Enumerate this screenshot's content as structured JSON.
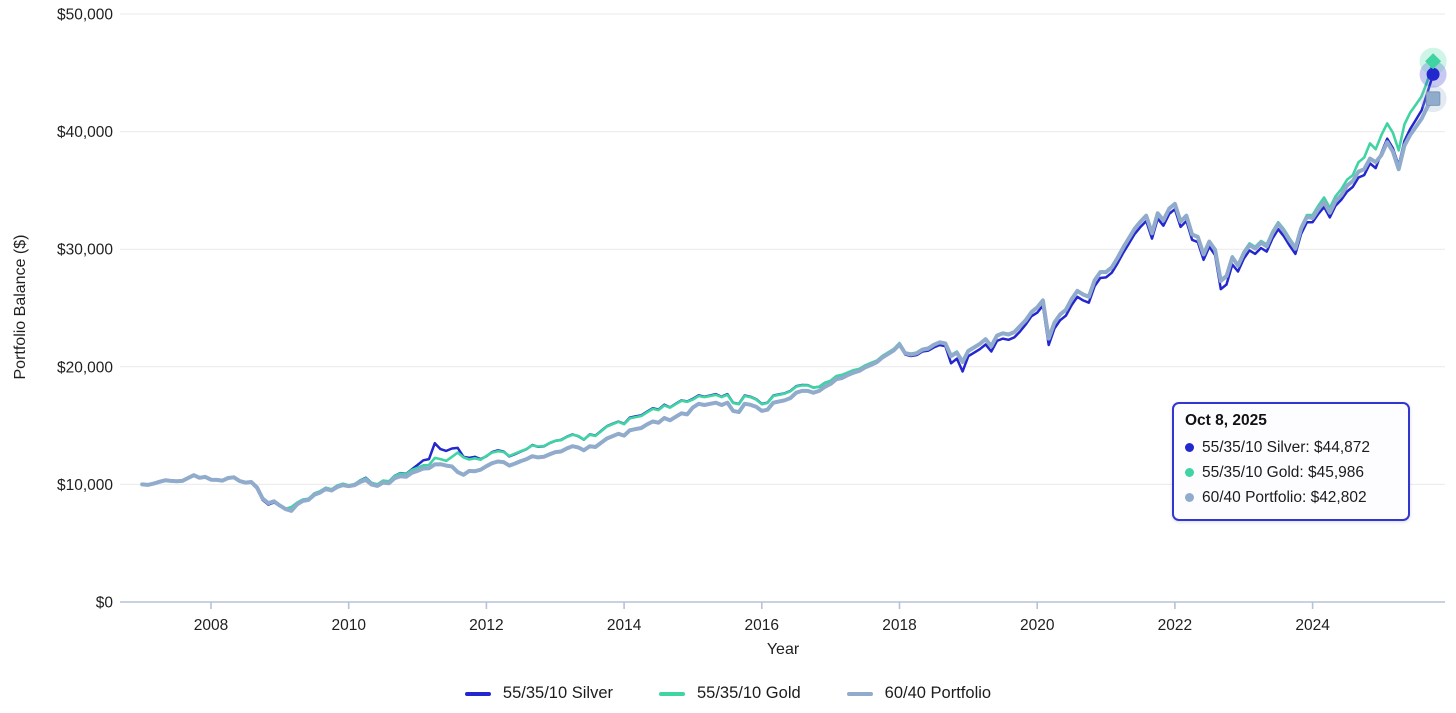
{
  "chart_data": {
    "type": "line",
    "title": "",
    "xlabel": "Year",
    "ylabel": "Portfolio Balance ($)",
    "x_start": {
      "year": 2007,
      "month": 1
    },
    "x_end": {
      "year": 2025,
      "month": 10
    },
    "points_per_year": 12,
    "ylim": [
      0,
      50000
    ],
    "grid": "horizontal",
    "legend_position": "bottom",
    "y_ticks": [
      {
        "value": 0,
        "label": "$0"
      },
      {
        "value": 10000,
        "label": "$10,000"
      },
      {
        "value": 20000,
        "label": "$20,000"
      },
      {
        "value": 30000,
        "label": "$30,000"
      },
      {
        "value": 40000,
        "label": "$40,000"
      },
      {
        "value": 50000,
        "label": "$50,000"
      }
    ],
    "x_ticks": [
      {
        "value": 2008,
        "label": "2008"
      },
      {
        "value": 2010,
        "label": "2010"
      },
      {
        "value": 2012,
        "label": "2012"
      },
      {
        "value": 2014,
        "label": "2014"
      },
      {
        "value": 2016,
        "label": "2016"
      },
      {
        "value": 2018,
        "label": "2018"
      },
      {
        "value": 2020,
        "label": "2020"
      },
      {
        "value": 2022,
        "label": "2022"
      },
      {
        "value": 2024,
        "label": "2024"
      }
    ],
    "series": [
      {
        "name": "55/35/10 Silver",
        "color": "#2427cd",
        "marker": "circle",
        "final_value": 44872,
        "values": [
          10000,
          9940,
          10050,
          10200,
          10380,
          10300,
          10230,
          10290,
          10570,
          10830,
          10570,
          10650,
          10360,
          10440,
          10280,
          10530,
          10650,
          10270,
          10100,
          10160,
          9650,
          8680,
          8280,
          8460,
          8180,
          7850,
          8020,
          8420,
          8700,
          8760,
          9220,
          9400,
          9710,
          9550,
          9890,
          10050,
          9900,
          10000,
          10340,
          10560,
          10130,
          9990,
          10300,
          10240,
          10740,
          10960,
          10900,
          11280,
          11650,
          12050,
          12150,
          13500,
          13000,
          12850,
          13050,
          13100,
          12350,
          12250,
          12350,
          12150,
          12400,
          12750,
          12900,
          12800,
          12380,
          12580,
          12800,
          13000,
          13350,
          13200,
          13230,
          13500,
          13700,
          13780,
          14050,
          14250,
          14100,
          13800,
          14250,
          14150,
          14550,
          14950,
          15150,
          15350,
          15150,
          15680,
          15780,
          15880,
          16180,
          16480,
          16360,
          16780,
          16550,
          16850,
          17150,
          17050,
          17280,
          17580,
          17460,
          17560,
          17680,
          17460,
          17680,
          16950,
          16850,
          17560,
          17460,
          17250,
          16850,
          16950,
          17550,
          17650,
          17750,
          17950,
          18350,
          18450,
          18440,
          18230,
          18300,
          18640,
          18800,
          19200,
          19280,
          19480,
          19680,
          19760,
          20050,
          20250,
          20430,
          20820,
          21100,
          21380,
          21900,
          21050,
          20920,
          21000,
          21300,
          21380,
          21650,
          21850,
          21750,
          20300,
          20700,
          19600,
          20900,
          21200,
          21500,
          21900,
          21300,
          22200,
          22400,
          22300,
          22500,
          23000,
          23600,
          24300,
          24600,
          25200,
          21850,
          23250,
          23950,
          24350,
          25250,
          25950,
          25650,
          25450,
          26850,
          27550,
          27600,
          28000,
          28800,
          29700,
          30500,
          31300,
          31900,
          32400,
          30900,
          32600,
          32000,
          33000,
          33400,
          31900,
          32400,
          30800,
          30600,
          29100,
          30200,
          29500,
          26600,
          27000,
          28700,
          28100,
          29200,
          29900,
          29600,
          30100,
          29800,
          30900,
          31700,
          31100,
          30300,
          29600,
          31300,
          32300,
          32300,
          33000,
          33600,
          32700,
          33700,
          34200,
          34900,
          35300,
          36100,
          36300,
          37300,
          36900,
          38200,
          39400,
          38600,
          37100,
          39200,
          40200,
          41000,
          41800,
          43300,
          44872
        ]
      },
      {
        "name": "55/35/10 Gold",
        "color": "#41d4a3",
        "marker": "diamond",
        "final_value": 45986,
        "values": [
          10000,
          9950,
          10060,
          10210,
          10360,
          10290,
          10240,
          10310,
          10560,
          10810,
          10590,
          10660,
          10380,
          10420,
          10300,
          10520,
          10620,
          10260,
          10120,
          10180,
          9700,
          8750,
          8350,
          8520,
          8230,
          7920,
          8080,
          8450,
          8720,
          8780,
          9230,
          9420,
          9720,
          9580,
          9900,
          10060,
          9920,
          10020,
          10320,
          10520,
          10110,
          10010,
          10320,
          10260,
          10720,
          10920,
          10870,
          11220,
          11400,
          11620,
          11650,
          12250,
          12150,
          12000,
          12350,
          12700,
          12300,
          12120,
          12220,
          12100,
          12420,
          12700,
          12820,
          12760,
          12420,
          12620,
          12820,
          13020,
          13320,
          13220,
          13260,
          13520,
          13720,
          13760,
          14020,
          14220,
          14120,
          13820,
          14220,
          14120,
          14520,
          14920,
          15120,
          15320,
          15120,
          15620,
          15720,
          15820,
          16120,
          16420,
          16320,
          16720,
          16520,
          16820,
          17120,
          17020,
          17220,
          17520,
          17420,
          17520,
          17620,
          17420,
          17620,
          16920,
          16820,
          17520,
          17420,
          17220,
          16820,
          16920,
          17520,
          17620,
          17720,
          17920,
          18320,
          18420,
          18420,
          18220,
          18320,
          18620,
          18820,
          19220,
          19320,
          19520,
          19720,
          19820,
          20120,
          20320,
          20520,
          20920,
          21220,
          21520,
          22020,
          21220,
          21120,
          21220,
          21520,
          21620,
          21920,
          22120,
          22020,
          21000,
          21300,
          20500,
          21400,
          21700,
          22000,
          22400,
          21800,
          22700,
          22900,
          22800,
          23000,
          23500,
          24000,
          24700,
          25100,
          25700,
          22420,
          23800,
          24500,
          24900,
          25800,
          26500,
          26200,
          26000,
          27400,
          28100,
          28100,
          28500,
          29300,
          30200,
          31000,
          31800,
          32400,
          32900,
          31400,
          33100,
          32500,
          33500,
          33900,
          32400,
          32900,
          31300,
          31100,
          29600,
          30700,
          30000,
          27400,
          27800,
          29400,
          28700,
          29800,
          30500,
          30200,
          30700,
          30400,
          31500,
          32300,
          31700,
          30900,
          30200,
          31900,
          32900,
          32900,
          33700,
          34400,
          33500,
          34500,
          35100,
          35900,
          36300,
          37400,
          37800,
          39000,
          38500,
          39700,
          40700,
          39900,
          38400,
          40600,
          41600,
          42300,
          43000,
          44300,
          45986
        ]
      },
      {
        "name": "60/40 Portfolio",
        "color": "#90abcb",
        "marker": "square",
        "final_value": 42802,
        "values": [
          10000,
          9960,
          10070,
          10220,
          10350,
          10300,
          10260,
          10300,
          10540,
          10780,
          10560,
          10640,
          10400,
          10380,
          10320,
          10540,
          10600,
          10280,
          10150,
          10200,
          9750,
          8800,
          8400,
          8560,
          8200,
          7900,
          7750,
          8300,
          8600,
          8680,
          9120,
          9300,
          9620,
          9480,
          9780,
          9940,
          9850,
          9930,
          10200,
          10380,
          9980,
          9870,
          10150,
          10090,
          10520,
          10700,
          10650,
          10980,
          11150,
          11350,
          11380,
          11700,
          11720,
          11600,
          11520,
          11050,
          10820,
          11150,
          11120,
          11250,
          11550,
          11800,
          11950,
          11900,
          11600,
          11780,
          11980,
          12150,
          12400,
          12300,
          12350,
          12550,
          12750,
          12800,
          13050,
          13250,
          13150,
          12900,
          13250,
          13180,
          13550,
          13900,
          14100,
          14300,
          14150,
          14600,
          14700,
          14800,
          15100,
          15350,
          15250,
          15650,
          15450,
          15750,
          16050,
          15950,
          16550,
          16850,
          16750,
          16850,
          16950,
          16750,
          16950,
          16250,
          16150,
          16850,
          16780,
          16600,
          16250,
          16350,
          16950,
          17050,
          17150,
          17350,
          17800,
          17950,
          17950,
          17800,
          17950,
          18300,
          18550,
          18950,
          19050,
          19300,
          19500,
          19650,
          19950,
          20150,
          20380,
          20780,
          21080,
          21400,
          21900,
          21150,
          21050,
          21150,
          21450,
          21550,
          21870,
          22080,
          21980,
          20900,
          21200,
          20400,
          21350,
          21650,
          21950,
          22350,
          21750,
          22650,
          22850,
          22750,
          22950,
          23450,
          23950,
          24650,
          25050,
          25650,
          22400,
          23750,
          24450,
          24850,
          25750,
          26450,
          26150,
          25950,
          27350,
          28050,
          28050,
          28450,
          29250,
          30150,
          30950,
          31750,
          32350,
          32850,
          31350,
          33050,
          32450,
          33450,
          33850,
          32350,
          32850,
          31250,
          31050,
          29550,
          30650,
          29950,
          27300,
          27700,
          29300,
          28600,
          29650,
          30350,
          30050,
          30550,
          30250,
          31350,
          32150,
          31550,
          30750,
          30050,
          31750,
          32750,
          32650,
          33400,
          34000,
          33100,
          34100,
          34600,
          35400,
          35800,
          36600,
          36800,
          37700,
          37400,
          38000,
          39100,
          38300,
          36800,
          38800,
          39700,
          40400,
          41100,
          42100,
          42802
        ]
      }
    ]
  },
  "tooltip": {
    "title": "Oct 8, 2025",
    "rows": [
      {
        "text": "55/35/10 Silver: $44,872",
        "color": "#2427cd"
      },
      {
        "text": "55/35/10 Gold: $45,986",
        "color": "#41d4a3"
      },
      {
        "text": "60/40 Portfolio: $42,802",
        "color": "#90abcb"
      }
    ],
    "border_color": "#3236cf"
  },
  "axis": {
    "grid_color": "#e9e9e9",
    "axis_line_color": "#b6c2d9",
    "text_color": "#1f1f1f"
  }
}
